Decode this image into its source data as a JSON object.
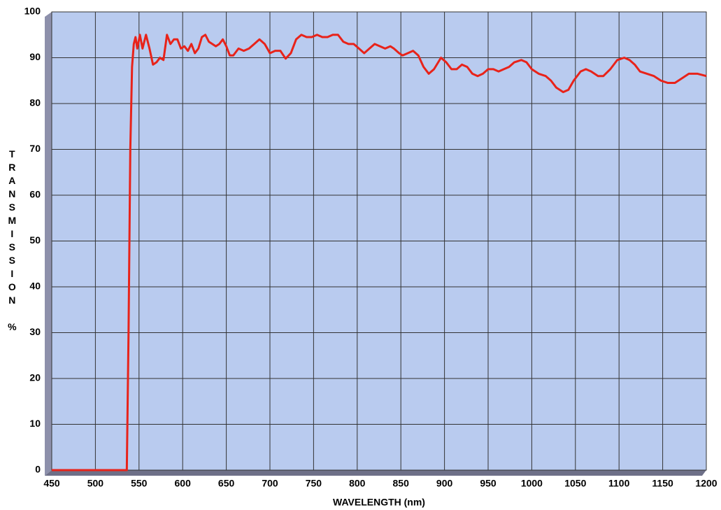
{
  "chart_data": {
    "type": "line",
    "x_label": "WAVELENGTH (nm)",
    "y_label": "TRANSMISSION %",
    "color": "#e8231a",
    "x": [
      450,
      536,
      538,
      540,
      542,
      544,
      546,
      548,
      551,
      554,
      558,
      562,
      566,
      570,
      574,
      578,
      582,
      586,
      590,
      594,
      598,
      602,
      606,
      610,
      614,
      618,
      622,
      626,
      630,
      634,
      638,
      642,
      646,
      650,
      654,
      658,
      664,
      670,
      676,
      682,
      688,
      694,
      700,
      706,
      712,
      718,
      724,
      730,
      736,
      742,
      748,
      754,
      760,
      766,
      772,
      778,
      784,
      790,
      796,
      802,
      808,
      814,
      820,
      826,
      832,
      838,
      842,
      848,
      852,
      858,
      864,
      870,
      876,
      882,
      888,
      896,
      902,
      908,
      914,
      920,
      926,
      932,
      938,
      944,
      950,
      956,
      962,
      968,
      974,
      980,
      988,
      994,
      1000,
      1008,
      1016,
      1022,
      1028,
      1036,
      1042,
      1048,
      1056,
      1062,
      1068,
      1076,
      1082,
      1090,
      1098,
      1106,
      1112,
      1118,
      1124,
      1132,
      1140,
      1148,
      1156,
      1164,
      1172,
      1180,
      1190,
      1200
    ],
    "values": [
      0,
      0,
      30,
      70,
      88,
      93,
      94.5,
      92,
      95,
      92,
      95,
      92,
      88.5,
      89,
      90,
      89.5,
      95,
      93,
      94,
      94,
      92,
      92.5,
      91.5,
      93,
      91,
      92,
      94.5,
      95,
      93.5,
      93,
      92.5,
      93,
      94,
      92.5,
      90.5,
      90.5,
      92,
      91.5,
      92,
      93,
      94,
      93,
      91,
      91.5,
      91.5,
      89.8,
      91,
      94,
      95,
      94.5,
      94.5,
      95,
      94.5,
      94.5,
      95,
      95,
      93.5,
      93,
      93,
      92,
      91,
      92,
      93,
      92.5,
      92,
      92.5,
      92,
      91,
      90.5,
      91,
      91.5,
      90.5,
      88,
      86.5,
      87.5,
      90,
      89,
      87.5,
      87.5,
      88.5,
      88,
      86.5,
      86,
      86.5,
      87.5,
      87.5,
      87,
      87.5,
      88,
      89,
      89.5,
      89,
      87.5,
      86.5,
      86,
      85,
      83.5,
      82.5,
      83,
      85,
      87,
      87.5,
      87,
      86,
      86,
      87.5,
      89.5,
      90,
      89.5,
      88.5,
      87,
      86.5,
      86,
      85,
      84.5,
      84.5,
      85.5,
      86.5,
      86.5,
      86
    ],
    "xlim": [
      450,
      1200
    ],
    "xticks": [
      450,
      500,
      550,
      600,
      650,
      700,
      750,
      800,
      850,
      900,
      950,
      1000,
      1050,
      1100,
      1150,
      1200
    ],
    "ylim": [
      0,
      100
    ],
    "yticks": [
      0,
      10,
      20,
      30,
      40,
      50,
      60,
      70,
      80,
      90,
      100
    ],
    "grid": true
  }
}
